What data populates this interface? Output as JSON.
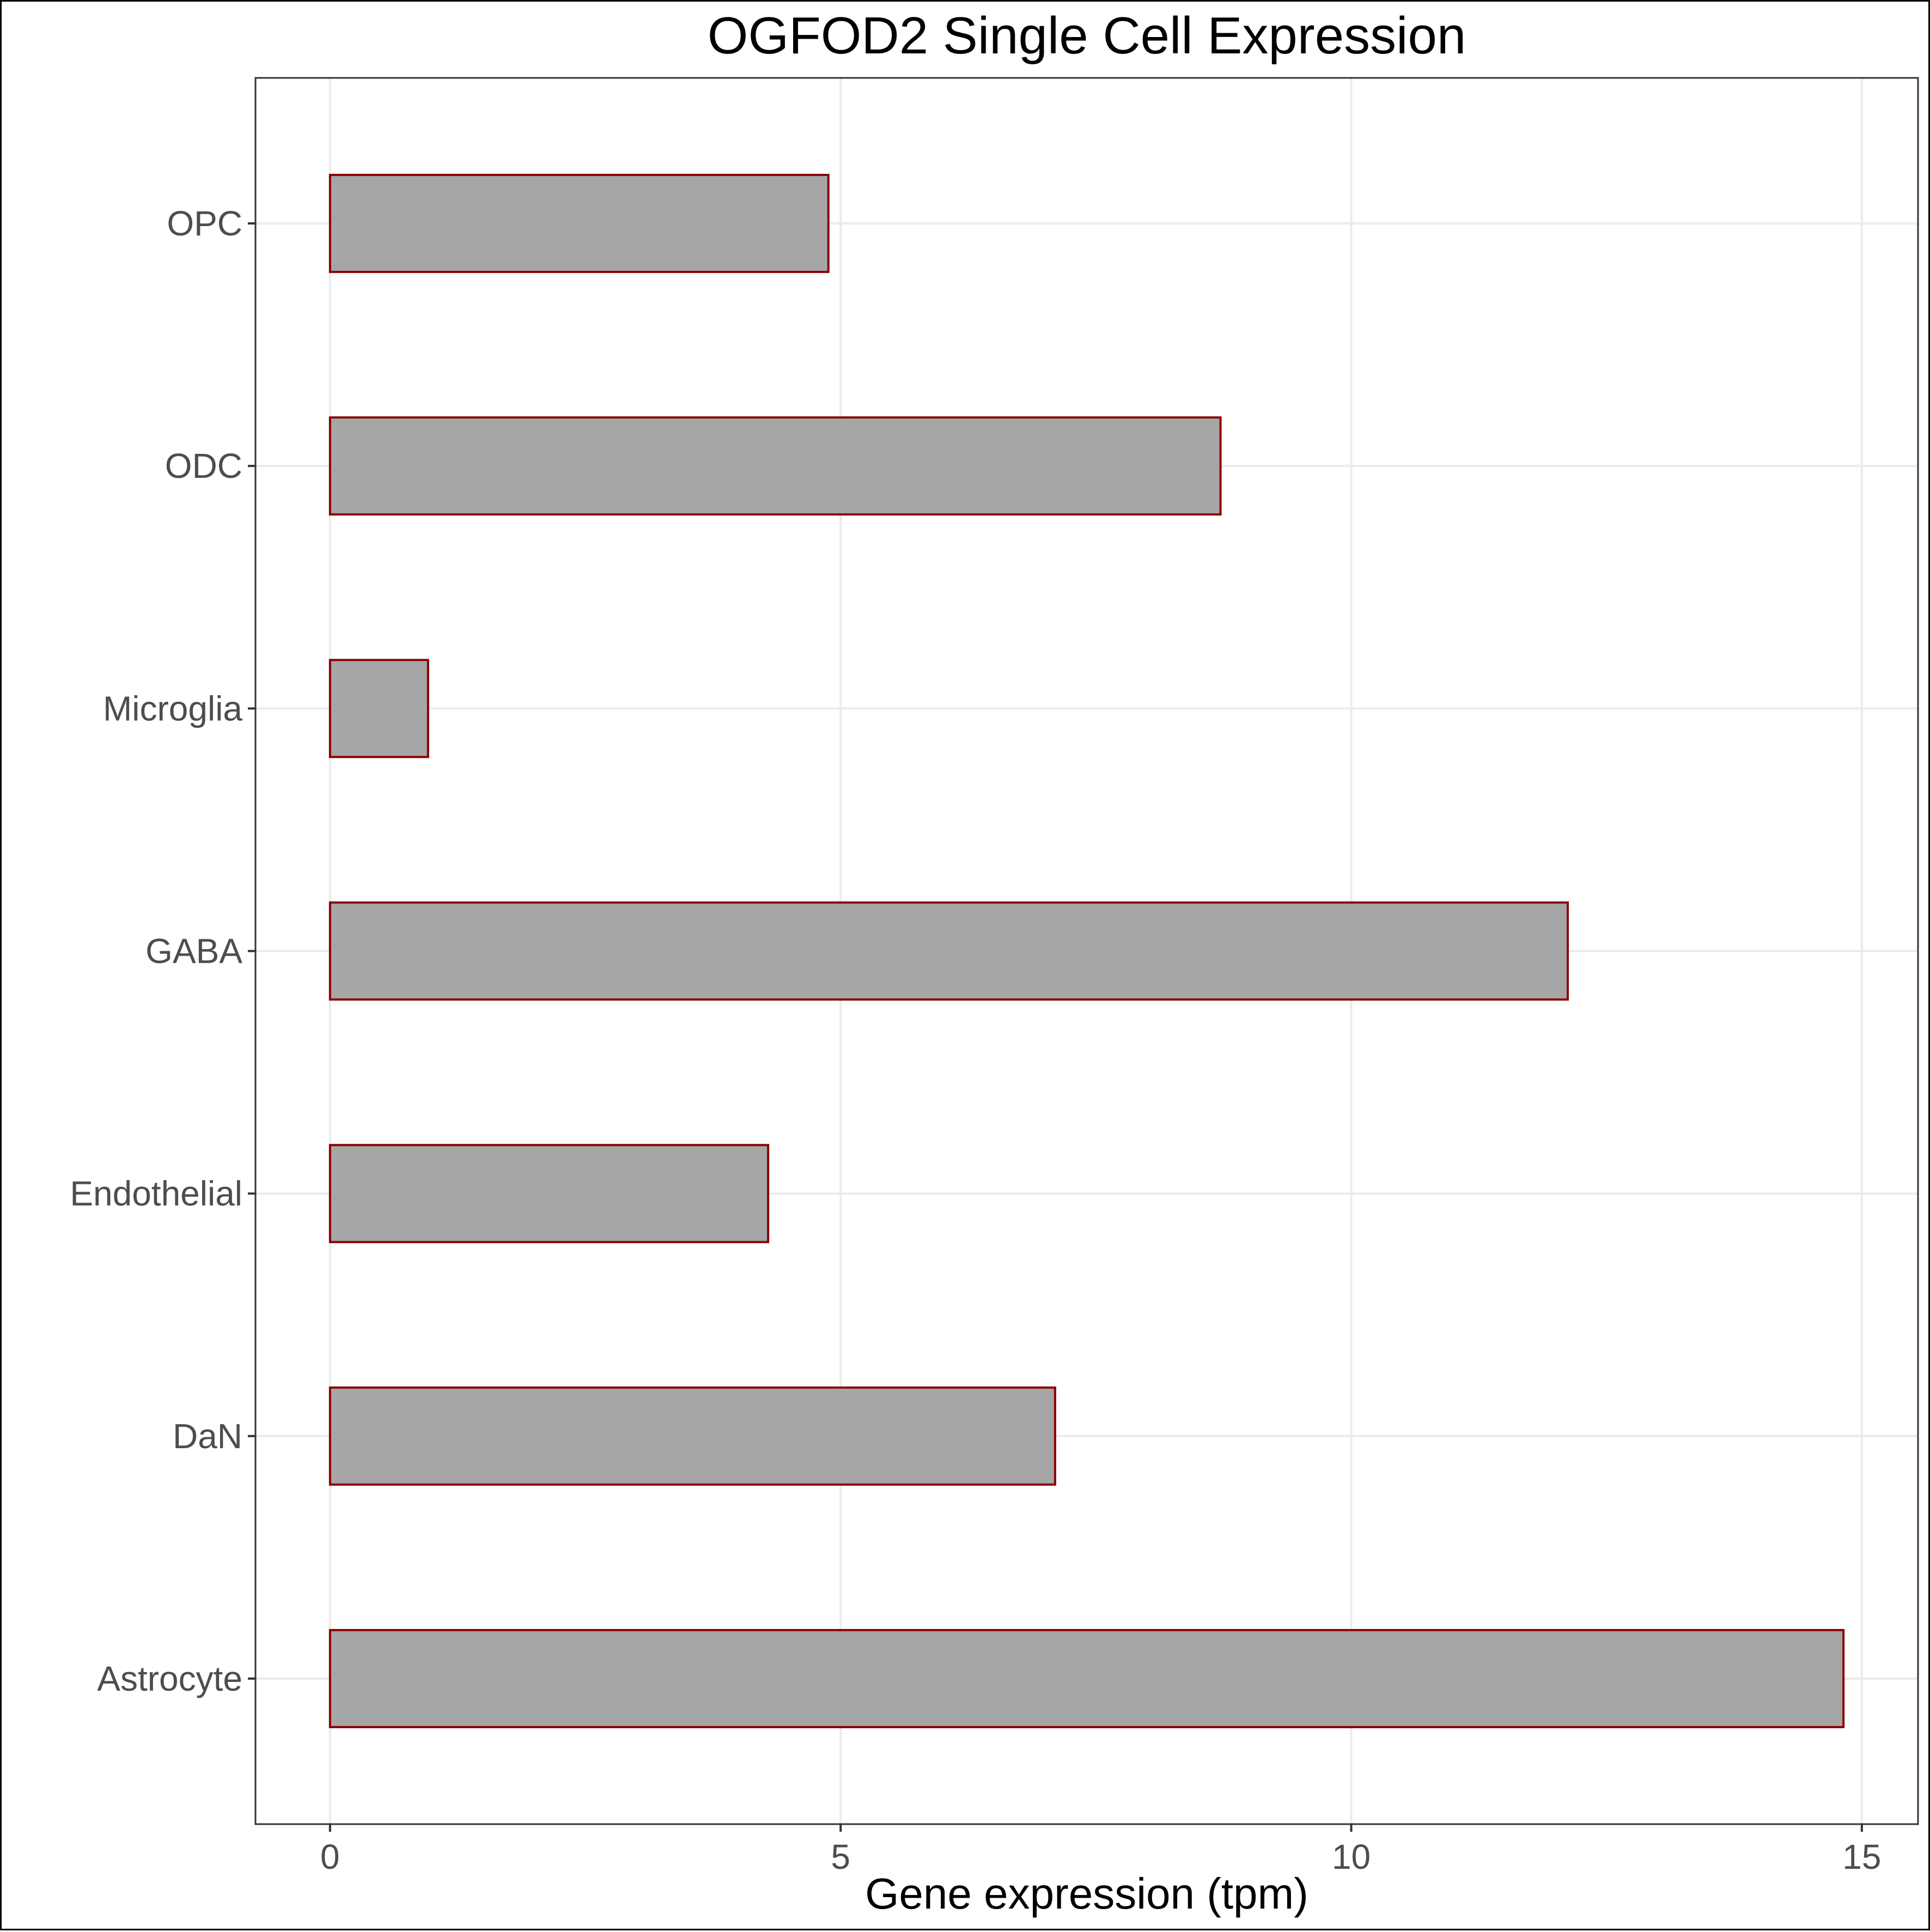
{
  "chart_data": {
    "type": "bar",
    "orientation": "horizontal",
    "title": "OGFOD2 Single Cell Expression",
    "xlabel": "Gene expression (tpm)",
    "ylabel": "",
    "categories": [
      "Astrocyte",
      "DaN",
      "Endothelial",
      "GABA",
      "Microglia",
      "ODC",
      "OPC"
    ],
    "values": [
      14.82,
      7.1,
      4.29,
      12.12,
      0.96,
      8.72,
      4.88
    ],
    "xlim": [
      -0.73,
      15.55
    ],
    "x_ticks": [
      0,
      5,
      10,
      15
    ],
    "x_tick_labels": [
      "0",
      "5",
      "10",
      "15"
    ],
    "grid": true,
    "legend": "none",
    "colors": {
      "bar_fill": "#a6a6a6",
      "bar_stroke": "#8b0000",
      "grid": "#ebebeb",
      "tick_label": "#4d4d4d",
      "text": "#000000"
    }
  }
}
